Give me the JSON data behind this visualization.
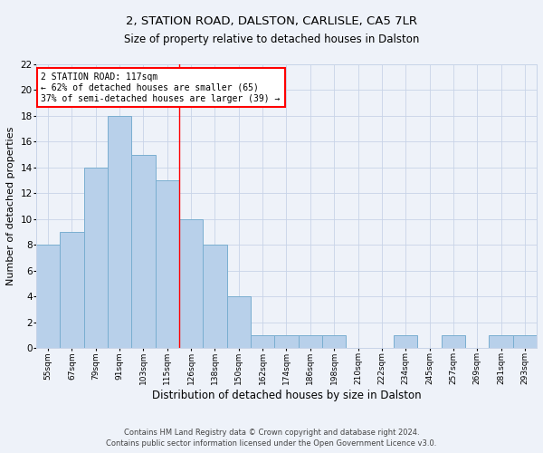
{
  "title1": "2, STATION ROAD, DALSTON, CARLISLE, CA5 7LR",
  "title2": "Size of property relative to detached houses in Dalston",
  "xlabel": "Distribution of detached houses by size in Dalston",
  "ylabel": "Number of detached properties",
  "categories": [
    "55sqm",
    "67sqm",
    "79sqm",
    "91sqm",
    "103sqm",
    "115sqm",
    "126sqm",
    "138sqm",
    "150sqm",
    "162sqm",
    "174sqm",
    "186sqm",
    "198sqm",
    "210sqm",
    "222sqm",
    "234sqm",
    "245sqm",
    "257sqm",
    "269sqm",
    "281sqm",
    "293sqm"
  ],
  "values": [
    8,
    9,
    14,
    18,
    15,
    13,
    10,
    8,
    4,
    1,
    1,
    1,
    1,
    0,
    0,
    1,
    0,
    1,
    0,
    1,
    1
  ],
  "bar_color": "#b8d0ea",
  "bar_edge_color": "#7aaed0",
  "property_line_x": 5.5,
  "annotation_text": "2 STATION ROAD: 117sqm\n← 62% of detached houses are smaller (65)\n37% of semi-detached houses are larger (39) →",
  "annotation_box_color": "white",
  "annotation_box_edge": "red",
  "ylim": [
    0,
    22
  ],
  "yticks": [
    0,
    2,
    4,
    6,
    8,
    10,
    12,
    14,
    16,
    18,
    20,
    22
  ],
  "footer1": "Contains HM Land Registry data © Crown copyright and database right 2024.",
  "footer2": "Contains public sector information licensed under the Open Government Licence v3.0.",
  "background_color": "#eef2f9",
  "grid_color": "#c8d4e8"
}
